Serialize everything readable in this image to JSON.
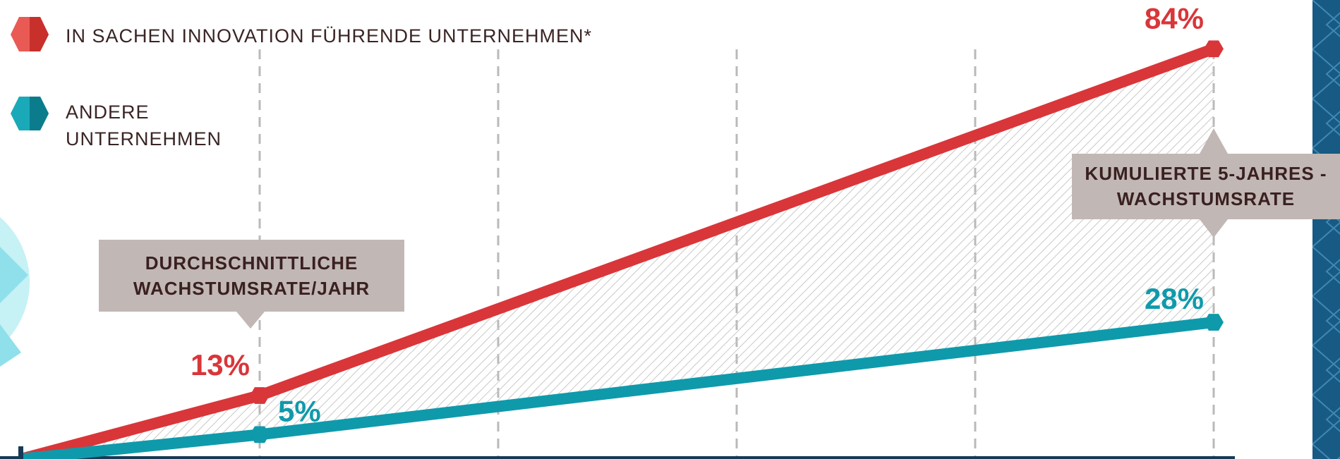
{
  "chart_data": {
    "type": "line",
    "x": [
      0,
      1,
      5
    ],
    "xlim": [
      0,
      5
    ],
    "xticks": [
      1,
      2,
      3,
      4,
      5
    ],
    "ylim": [
      0,
      94
    ],
    "grid": true,
    "series": [
      {
        "name": "IN SACHEN INNOVATION FÜHRENDE UNTERNEHMEN*",
        "color": "#d9363a",
        "values": [
          0,
          13,
          84
        ],
        "value_labels": [
          null,
          "13%",
          "84%"
        ]
      },
      {
        "name": "ANDERE UNTERNEHMEN",
        "color": "#0f9aab",
        "values": [
          0,
          5,
          28
        ],
        "value_labels": [
          null,
          "5%",
          "28%"
        ]
      }
    ],
    "annotations": [
      "DURCHSCHNITTLICHE WACHSTUMSRATE/JAHR",
      "KUMULIERTE 5-JAHRES -WACHSTUMSRATE"
    ]
  }
}
